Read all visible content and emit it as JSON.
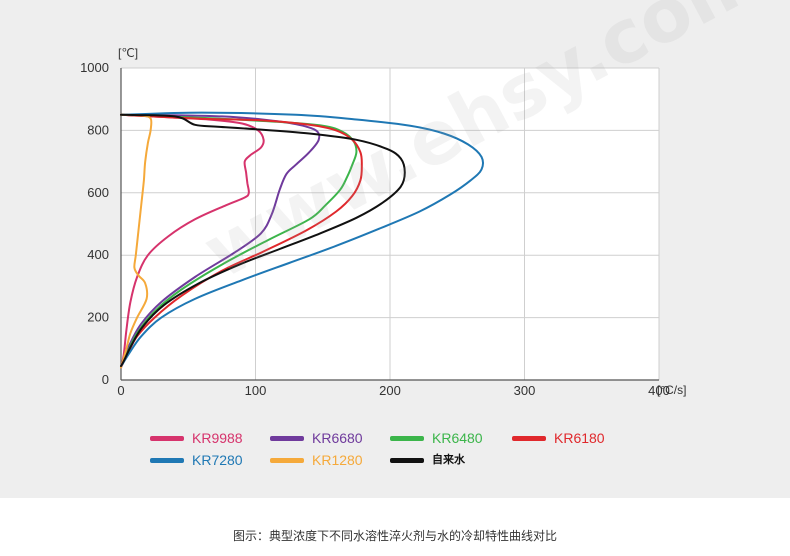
{
  "chart_data": {
    "type": "line",
    "title": "",
    "xlabel": "",
    "ylabel": "",
    "x_unit": "[°C/s]",
    "y_unit": "[℃]",
    "xlim": [
      0,
      400
    ],
    "ylim": [
      0,
      1000
    ],
    "x_ticks": [
      0,
      100,
      200,
      300,
      400
    ],
    "y_ticks": [
      0,
      200,
      400,
      600,
      800,
      1000
    ],
    "grid": true,
    "legend_position": "bottom",
    "series": [
      {
        "name": "KR9988",
        "color": "#d6336c",
        "points": [
          [
            0,
            850
          ],
          [
            35,
            842
          ],
          [
            65,
            835
          ],
          [
            90,
            822
          ],
          [
            102,
            800
          ],
          [
            106,
            770
          ],
          [
            104,
            745
          ],
          [
            96,
            720
          ],
          [
            92,
            700
          ],
          [
            93,
            665
          ],
          [
            94,
            630
          ],
          [
            95,
            600
          ],
          [
            92,
            585
          ],
          [
            78,
            560
          ],
          [
            55,
            515
          ],
          [
            35,
            460
          ],
          [
            20,
            400
          ],
          [
            12,
            330
          ],
          [
            7,
            250
          ],
          [
            4,
            160
          ],
          [
            2,
            80
          ],
          [
            0,
            40
          ]
        ]
      },
      {
        "name": "KR6680",
        "color": "#6f3a9c",
        "points": [
          [
            0,
            850
          ],
          [
            45,
            848
          ],
          [
            75,
            845
          ],
          [
            105,
            835
          ],
          [
            130,
            820
          ],
          [
            145,
            800
          ],
          [
            147,
            770
          ],
          [
            140,
            730
          ],
          [
            130,
            690
          ],
          [
            123,
            660
          ],
          [
            118,
            610
          ],
          [
            112,
            530
          ],
          [
            104,
            470
          ],
          [
            85,
            410
          ],
          [
            55,
            330
          ],
          [
            30,
            250
          ],
          [
            15,
            180
          ],
          [
            6,
            110
          ],
          [
            2,
            60
          ],
          [
            0,
            40
          ]
        ]
      },
      {
        "name": "KR6480",
        "color": "#3bb54a",
        "points": [
          [
            0,
            850
          ],
          [
            60,
            840
          ],
          [
            115,
            828
          ],
          [
            150,
            815
          ],
          [
            165,
            795
          ],
          [
            173,
            765
          ],
          [
            175,
            730
          ],
          [
            172,
            690
          ],
          [
            168,
            650
          ],
          [
            163,
            610
          ],
          [
            152,
            560
          ],
          [
            140,
            515
          ],
          [
            110,
            450
          ],
          [
            75,
            370
          ],
          [
            45,
            290
          ],
          [
            25,
            220
          ],
          [
            12,
            150
          ],
          [
            5,
            90
          ],
          [
            1,
            50
          ]
        ]
      },
      {
        "name": "KR6180",
        "color": "#e0282c",
        "points": [
          [
            0,
            850
          ],
          [
            55,
            838
          ],
          [
            105,
            832
          ],
          [
            140,
            818
          ],
          [
            160,
            800
          ],
          [
            172,
            770
          ],
          [
            178,
            730
          ],
          [
            179,
            690
          ],
          [
            178,
            640
          ],
          [
            172,
            590
          ],
          [
            160,
            540
          ],
          [
            138,
            480
          ],
          [
            105,
            410
          ],
          [
            75,
            350
          ],
          [
            45,
            270
          ],
          [
            25,
            200
          ],
          [
            12,
            140
          ],
          [
            5,
            85
          ],
          [
            1,
            50
          ]
        ]
      },
      {
        "name": "KR7280",
        "color": "#1f78b4",
        "points": [
          [
            0,
            850
          ],
          [
            60,
            857
          ],
          [
            130,
            850
          ],
          [
            175,
            835
          ],
          [
            215,
            815
          ],
          [
            240,
            790
          ],
          [
            258,
            755
          ],
          [
            268,
            715
          ],
          [
            268,
            675
          ],
          [
            260,
            640
          ],
          [
            245,
            595
          ],
          [
            222,
            540
          ],
          [
            192,
            485
          ],
          [
            160,
            430
          ],
          [
            125,
            375
          ],
          [
            90,
            320
          ],
          [
            55,
            260
          ],
          [
            30,
            200
          ],
          [
            15,
            140
          ],
          [
            6,
            85
          ],
          [
            1,
            50
          ]
        ]
      },
      {
        "name": "KR1280",
        "color": "#f5a93a",
        "points": [
          [
            0,
            850
          ],
          [
            15,
            848
          ],
          [
            22,
            838
          ],
          [
            22,
            800
          ],
          [
            20,
            760
          ],
          [
            18,
            700
          ],
          [
            17,
            640
          ],
          [
            15,
            560
          ],
          [
            13,
            480
          ],
          [
            11,
            400
          ],
          [
            10,
            360
          ],
          [
            13,
            335
          ],
          [
            18,
            310
          ],
          [
            19,
            260
          ],
          [
            12,
            200
          ],
          [
            7,
            150
          ],
          [
            4,
            100
          ],
          [
            1,
            55
          ],
          [
            0,
            40
          ]
        ]
      },
      {
        "name": "自来水",
        "color": "#111111",
        "points": [
          [
            0,
            850
          ],
          [
            40,
            845
          ],
          [
            55,
            818
          ],
          [
            72,
            812
          ],
          [
            100,
            804
          ],
          [
            140,
            790
          ],
          [
            175,
            770
          ],
          [
            198,
            740
          ],
          [
            208,
            710
          ],
          [
            211,
            665
          ],
          [
            208,
            620
          ],
          [
            195,
            570
          ],
          [
            175,
            520
          ],
          [
            148,
            470
          ],
          [
            118,
            420
          ],
          [
            88,
            370
          ],
          [
            58,
            310
          ],
          [
            32,
            240
          ],
          [
            16,
            170
          ],
          [
            7,
            105
          ],
          [
            2,
            60
          ],
          [
            0,
            45
          ]
        ]
      }
    ]
  },
  "watermark": "www.ehsy.com",
  "caption": "图示：典型浓度下不同水溶性淬火剂与水的冷却特性曲线对比"
}
